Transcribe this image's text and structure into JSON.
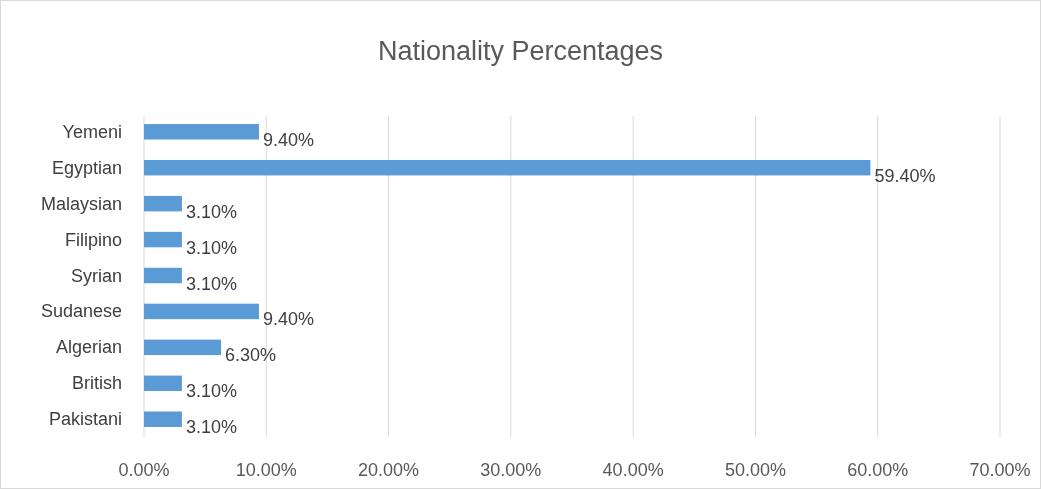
{
  "chart_data": {
    "type": "bar",
    "orientation": "horizontal",
    "title": "Nationality Percentages",
    "categories": [
      "Yemeni",
      "Egyptian",
      "Malaysian",
      "Filipino",
      "Syrian",
      "Sudanese",
      "Algerian",
      "British",
      "Pakistani"
    ],
    "values": [
      9.4,
      59.4,
      3.1,
      3.1,
      3.1,
      9.4,
      6.3,
      3.1,
      3.1
    ],
    "value_labels": [
      "9.40%",
      "59.40%",
      "3.10%",
      "3.10%",
      "3.10%",
      "9.40%",
      "6.30%",
      "3.10%",
      "3.10%"
    ],
    "color": "#5b9bd5",
    "xlim": [
      0,
      70
    ],
    "xticks": [
      {
        "value": 0,
        "label": "0.00%"
      },
      {
        "value": 10,
        "label": "10.00%"
      },
      {
        "value": 20,
        "label": "20.00%"
      },
      {
        "value": 30,
        "label": "30.00%"
      },
      {
        "value": 40,
        "label": "40.00%"
      },
      {
        "value": 50,
        "label": "50.00%"
      },
      {
        "value": 60,
        "label": "60.00%"
      },
      {
        "value": 70,
        "label": "70.00%"
      }
    ],
    "grid": "x"
  }
}
